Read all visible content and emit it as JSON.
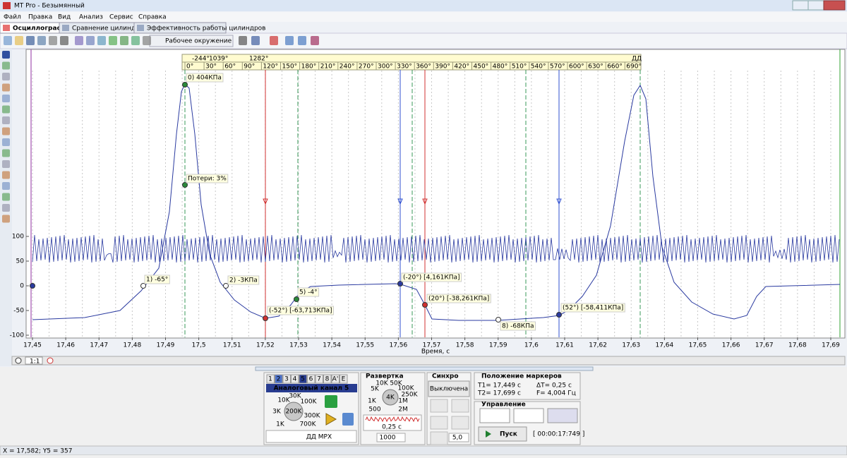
{
  "window": {
    "title": "MT Pro - Безымянный"
  },
  "menu": [
    "Файл",
    "Правка",
    "Вид",
    "Анализ",
    "Сервис",
    "Справка"
  ],
  "tabs": [
    "Осциллограф",
    "Сравнение цилиндров",
    "Эффективность работы цилиндров"
  ],
  "toolbar": {
    "environment": "Рабочее окружение"
  },
  "plot": {
    "angle_header": [
      "-244°",
      "1039°",
      "1282°"
    ],
    "angle_sensor": "ДД",
    "angles": [
      "0°",
      "30°",
      "60°",
      "90°",
      "120°",
      "150°",
      "180°",
      "210°",
      "240°",
      "270°",
      "300°",
      "330°",
      "360°",
      "390°",
      "420°",
      "450°",
      "480°",
      "510°",
      "540°",
      "570°",
      "600°",
      "630°",
      "660°",
      "690°"
    ],
    "y_ticks": [
      100,
      50,
      0,
      -50,
      -100
    ],
    "x_ticks": [
      "17,45",
      "17,46",
      "17,47",
      "17,48",
      "17,49",
      "17,5",
      "17,51",
      "17,52",
      "17,53",
      "17,54",
      "17,55",
      "17,56",
      "17,57",
      "17,58",
      "17,59",
      "17,6",
      "17,61",
      "17,62",
      "17,63",
      "17,64",
      "17,65",
      "17,66",
      "17,67",
      "17,68",
      "17,69"
    ],
    "x_label": "Время, с",
    "annotations": [
      "0)  404КПа",
      "Потери: 3%",
      "1)  -65°",
      "2)  -3КПа",
      "5)  -4°",
      "(-52°) [-63,713КПа]",
      "(-20°) [4,161КПа]",
      "(20°) [-38,261КПа]",
      "8)  -68КПа",
      "(52°) [-58,411КПа]"
    ]
  },
  "zoom": "1:1",
  "channels": {
    "tabs": [
      "1",
      "2",
      "3",
      "4",
      "5",
      "6",
      "7",
      "8",
      "A'",
      "E"
    ],
    "title": "Аналоговый канал 5",
    "knob": [
      "10K",
      "30K",
      "100K",
      "3K",
      "200K",
      "300K",
      "1K",
      "700K"
    ],
    "sensor": "ДД МРХ"
  },
  "sweep": {
    "title": "Развертка",
    "knob": [
      "10K",
      "50K",
      "5K",
      "100K",
      "250K",
      "1K",
      "4K",
      "500",
      "1M",
      "2M"
    ],
    "period": "0,25 с",
    "points": "1000"
  },
  "sync": {
    "title": "Синхро",
    "mode": "Выключена",
    "level": "5,0"
  },
  "markers": {
    "title": "Положение маркеров",
    "t1": "T1= 17,449 с",
    "dt": "ΔT= 0,25 с",
    "t2": "T2= 17,699 с",
    "f": "F= 4,004 Гц"
  },
  "control": {
    "title": "Управление",
    "start": "Пуск",
    "time": "[ 00:00:17:749 ]"
  },
  "status": "X = 17,582; Y5 = 357"
}
